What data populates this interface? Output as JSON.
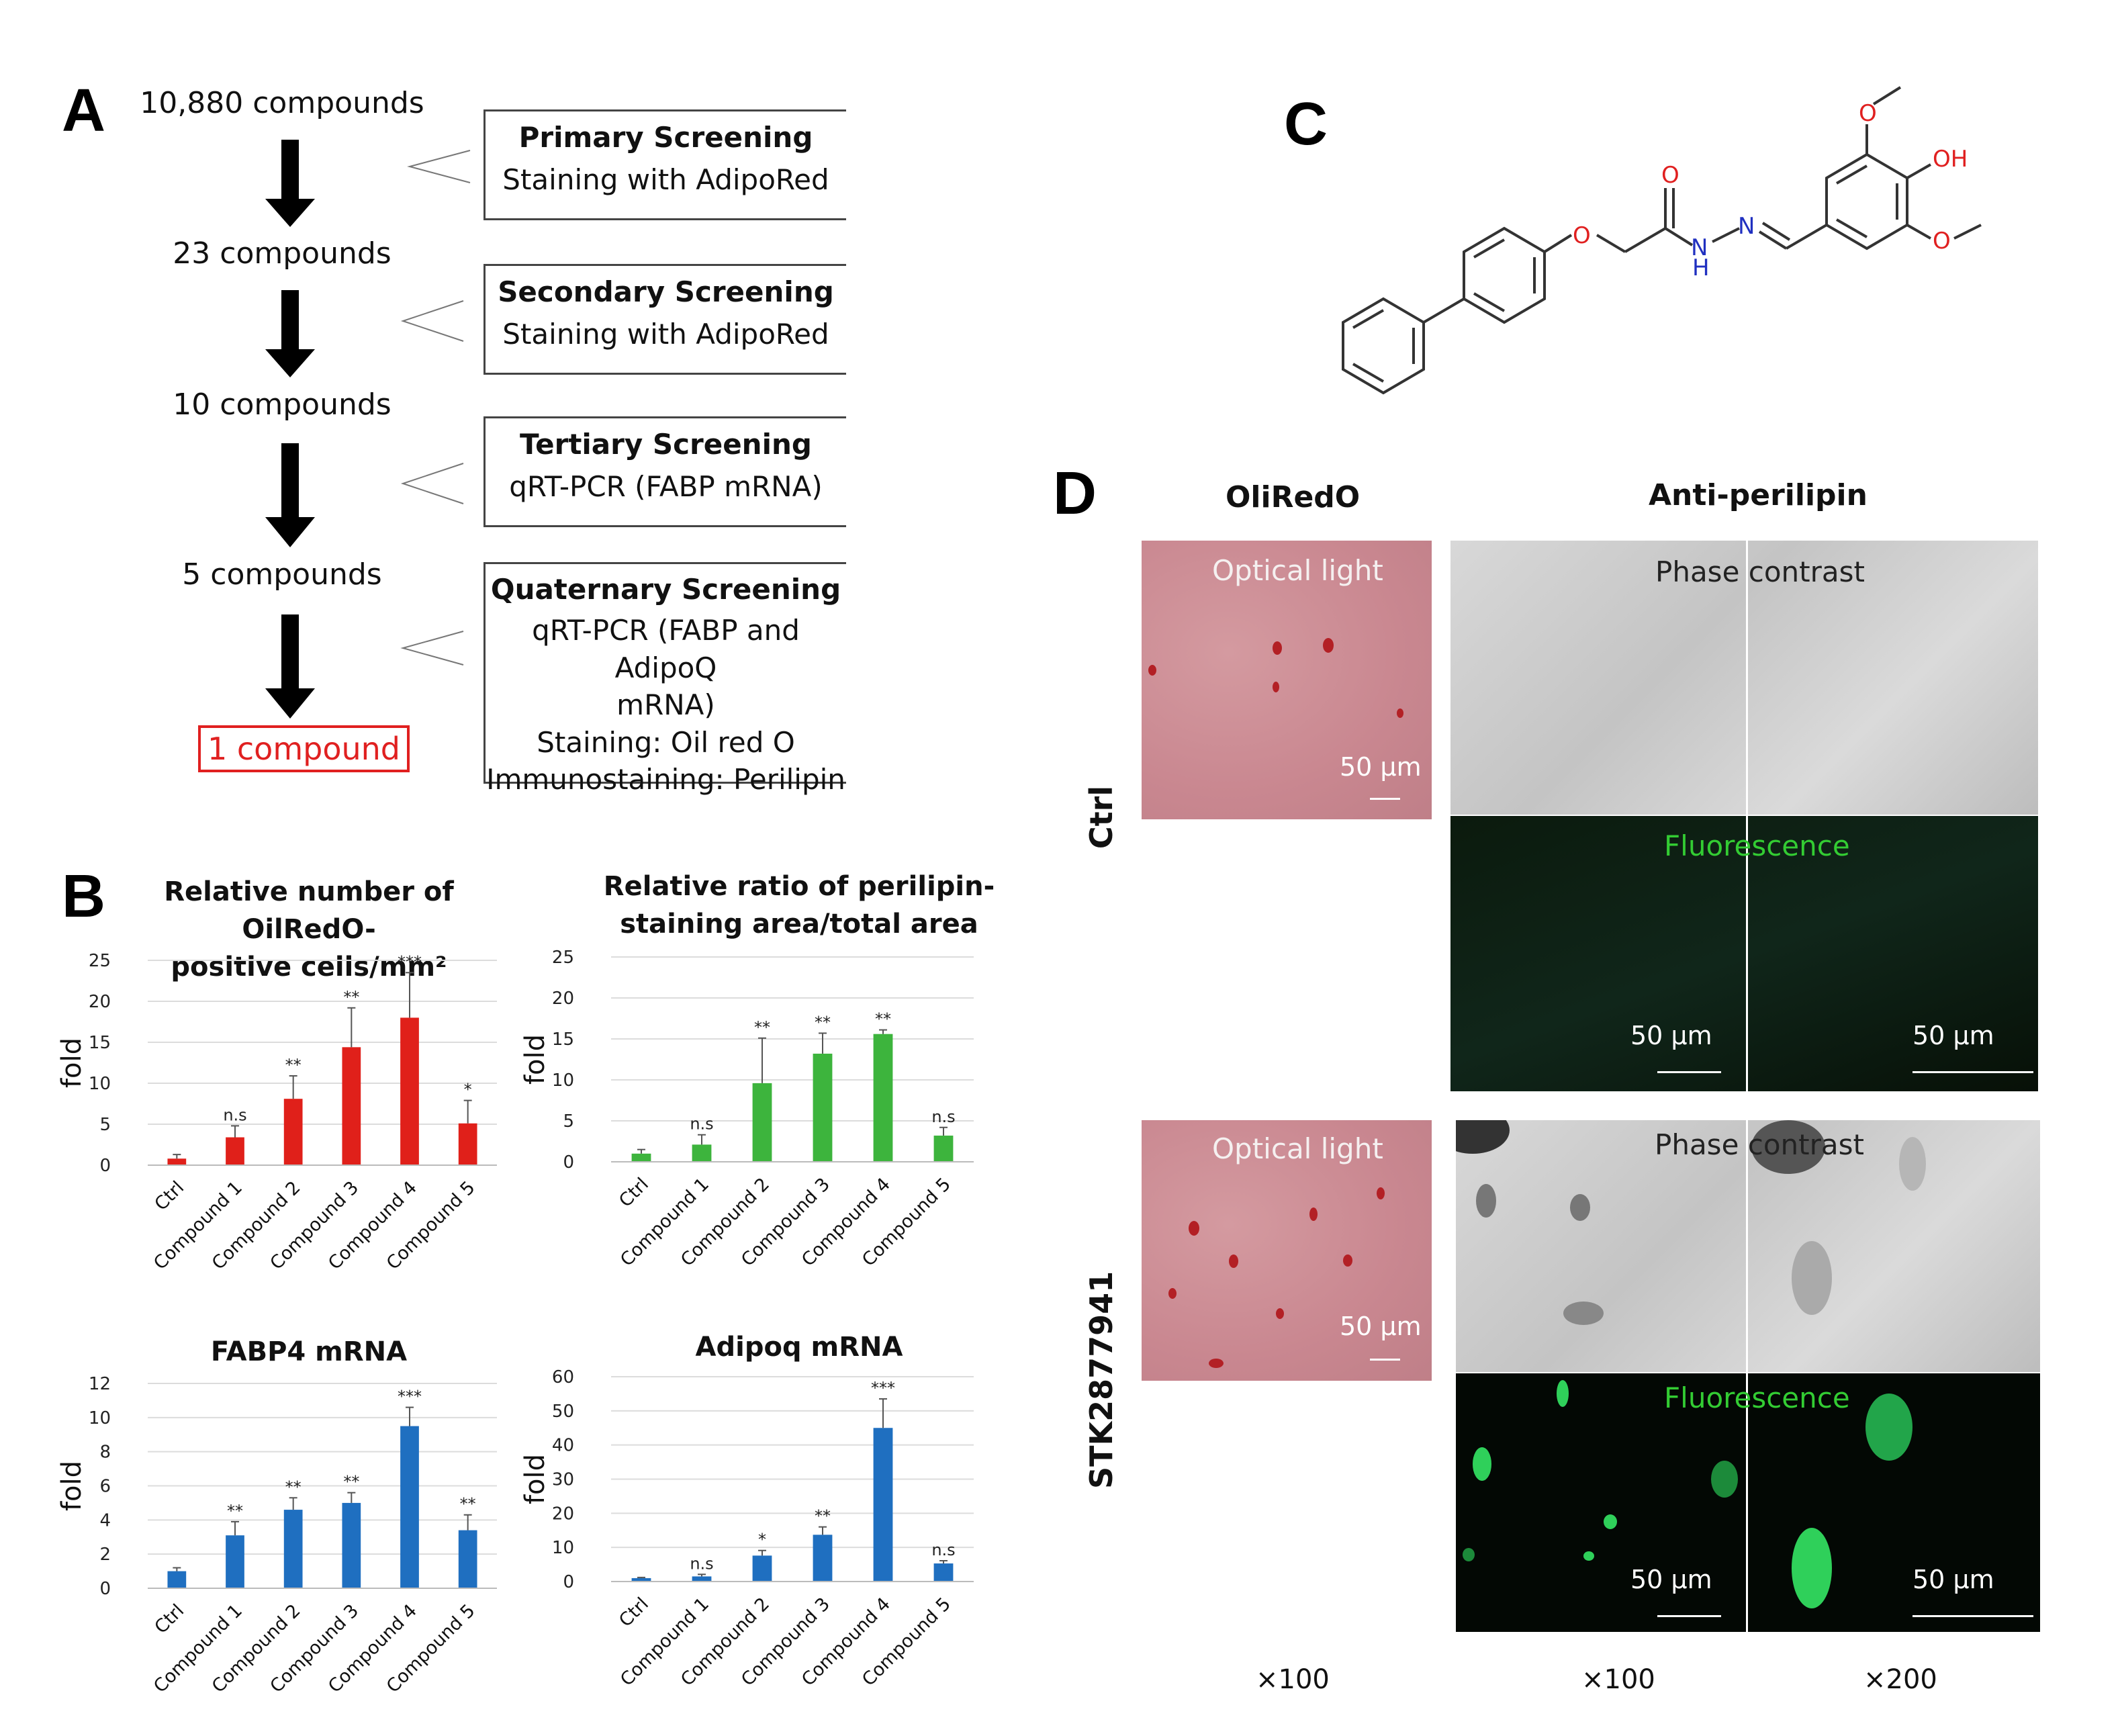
{
  "panels": {
    "A": "A",
    "B": "B",
    "C": "C",
    "D": "D"
  },
  "panel_a": {
    "counts": [
      "10,880 compounds",
      "23 compounds",
      "10 compounds",
      "5 compounds"
    ],
    "final": "1 compound",
    "boxes": [
      {
        "title": "Primary Screening",
        "lines": [
          "Staining with AdipoRed"
        ]
      },
      {
        "title": "Secondary Screening",
        "lines": [
          "Staining with AdipoRed"
        ]
      },
      {
        "title": "Tertiary Screening",
        "lines": [
          "qRT-PCR (FABP mRNA)"
        ]
      },
      {
        "title": "Quaternary Screening",
        "lines": [
          "qRT-PCR (FABP and AdipoQ",
          "mRNA)",
          "Staining: Oil red O",
          "Immunostaining: Perilipin"
        ]
      }
    ]
  },
  "chart_data": [
    {
      "type": "bar",
      "title_lines": [
        "Relative number of OilRedO-",
        "positive cells/mm²"
      ],
      "ylabel": "fold",
      "categories": [
        "Ctrl",
        "Compound 1",
        "Compound 2",
        "Compound 3",
        "Compound 4",
        "Compound 5"
      ],
      "values": [
        0.8,
        3.4,
        8.1,
        14.4,
        18.0,
        5.1
      ],
      "errors": [
        0.5,
        1.4,
        2.8,
        4.8,
        5.5,
        2.8
      ],
      "significance": [
        "",
        "n.s",
        "**",
        "**",
        "***",
        "*"
      ],
      "ylim": [
        0,
        25
      ],
      "yticks": [
        0,
        5,
        10,
        15,
        20,
        25
      ],
      "color": "#e0201a",
      "grid": true
    },
    {
      "type": "bar",
      "title_lines": [
        "Relative ratio of perilipin-",
        "staining area/total area"
      ],
      "ylabel": "fold",
      "categories": [
        "Ctrl",
        "Compound 1",
        "Compound 2",
        "Compound 3",
        "Compound 4",
        "Compound 5"
      ],
      "values": [
        1.0,
        2.1,
        9.6,
        13.2,
        15.6,
        3.2
      ],
      "errors": [
        0.5,
        1.2,
        5.5,
        2.5,
        0.5,
        1.0
      ],
      "significance": [
        "",
        "n.s",
        "**",
        "**",
        "**",
        "n.s"
      ],
      "ylim": [
        0,
        25
      ],
      "yticks": [
        0,
        5,
        10,
        15,
        20,
        25
      ],
      "color": "#3db43d",
      "grid": true
    },
    {
      "type": "bar",
      "title_lines": [
        "FABP4 mRNA"
      ],
      "ylabel": "fold",
      "categories": [
        "Ctrl",
        "Compound 1",
        "Compound 2",
        "Compound 3",
        "Compound 4",
        "Compound 5"
      ],
      "values": [
        1.0,
        3.1,
        4.6,
        5.0,
        9.5,
        3.4
      ],
      "errors": [
        0.2,
        0.8,
        0.7,
        0.6,
        1.1,
        0.9
      ],
      "significance": [
        "",
        "**",
        "**",
        "**",
        "***",
        "**"
      ],
      "ylim": [
        0,
        12
      ],
      "yticks": [
        0,
        2,
        4,
        6,
        8,
        10,
        12
      ],
      "color": "#1f6fc0",
      "grid": true
    },
    {
      "type": "bar",
      "title_lines": [
        "Adipoq mRNA"
      ],
      "ylabel": "fold",
      "categories": [
        "Ctrl",
        "Compound 1",
        "Compound 2",
        "Compound 3",
        "Compound 4",
        "Compound 5"
      ],
      "values": [
        1.0,
        1.5,
        7.6,
        13.7,
        45.0,
        5.3
      ],
      "errors": [
        0.2,
        0.6,
        1.5,
        2.3,
        8.5,
        0.8
      ],
      "significance": [
        "",
        "n.s",
        "*",
        "**",
        "***",
        "n.s"
      ],
      "ylim": [
        0,
        60
      ],
      "yticks": [
        0,
        10,
        20,
        30,
        40,
        50,
        60
      ],
      "color": "#1f6fc0",
      "grid": true
    }
  ],
  "panel_c": {
    "atoms": {
      "O": "O",
      "OH": "OH",
      "N": "N",
      "H": "H"
    }
  },
  "panel_d": {
    "col_headers": [
      "OliRedO",
      "Anti-perilipin"
    ],
    "row_labels": [
      "Ctrl",
      "STK2877941"
    ],
    "captions": {
      "optical": "Optical light",
      "phase": "Phase contrast",
      "fluor": "Fluorescence"
    },
    "scalebar": "50 μm",
    "magnifications": [
      "×100",
      "×100",
      "×200"
    ]
  }
}
